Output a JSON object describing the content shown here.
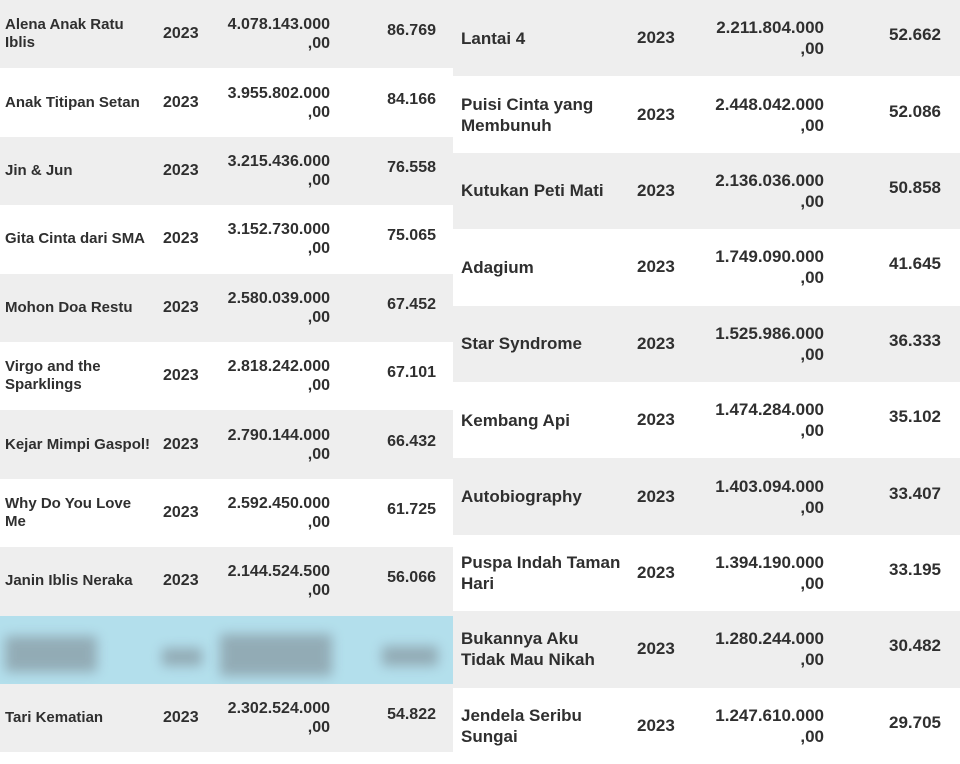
{
  "left_rows": [
    {
      "title": "Alena Anak Ratu Iblis",
      "year": "2023",
      "revenue": "4.078.143.000\n,00",
      "audience": "86.769"
    },
    {
      "title": "Anak Titipan Setan",
      "year": "2023",
      "revenue": "3.955.802.000\n,00",
      "audience": "84.166"
    },
    {
      "title": "Jin & Jun",
      "year": "2023",
      "revenue": "3.215.436.000\n,00",
      "audience": "76.558"
    },
    {
      "title": "Gita Cinta dari SMA",
      "year": "2023",
      "revenue": "3.152.730.000\n,00",
      "audience": "75.065"
    },
    {
      "title": "Mohon Doa Restu",
      "year": "2023",
      "revenue": "2.580.039.000\n,00",
      "audience": "67.452"
    },
    {
      "title": "Virgo and the Sparklings",
      "year": "2023",
      "revenue": "2.818.242.000\n,00",
      "audience": "67.101"
    },
    {
      "title": "Kejar Mimpi Gaspol!",
      "year": "2023",
      "revenue": "2.790.144.000\n,00",
      "audience": "66.432"
    },
    {
      "title": "Why Do You Love Me",
      "year": "2023",
      "revenue": "2.592.450.000\n,00",
      "audience": "61.725"
    },
    {
      "title": "Janin Iblis Neraka",
      "year": "2023",
      "revenue": "2.144.524.500\n,00",
      "audience": "56.066"
    },
    {
      "redacted": true
    },
    {
      "title": "Tari Kematian",
      "year": "2023",
      "revenue": "2.302.524.000\n,00",
      "audience": "54.822"
    }
  ],
  "right_rows": [
    {
      "title": "Lantai 4",
      "year": "2023",
      "revenue": "2.211.804.000\n,00",
      "audience": "52.662"
    },
    {
      "title": "Puisi Cinta yang Membunuh",
      "year": "2023",
      "revenue": "2.448.042.000\n,00",
      "audience": "52.086"
    },
    {
      "title": "Kutukan Peti Mati",
      "year": "2023",
      "revenue": "2.136.036.000\n,00",
      "audience": "50.858"
    },
    {
      "title": "Adagium",
      "year": "2023",
      "revenue": "1.749.090.000\n,00",
      "audience": "41.645"
    },
    {
      "title": "Star Syndrome",
      "year": "2023",
      "revenue": "1.525.986.000\n,00",
      "audience": "36.333"
    },
    {
      "title": "Kembang Api",
      "year": "2023",
      "revenue": "1.474.284.000\n,00",
      "audience": "35.102"
    },
    {
      "title": "Autobiography",
      "year": "2023",
      "revenue": "1.403.094.000\n,00",
      "audience": "33.407"
    },
    {
      "title": "Puspa Indah Taman Hari",
      "year": "2023",
      "revenue": "1.394.190.000\n,00",
      "audience": "33.195"
    },
    {
      "title": "Bukannya Aku Tidak Mau Nikah",
      "year": "2023",
      "revenue": "1.280.244.000\n,00",
      "audience": "30.482"
    },
    {
      "title": "Jendela Seribu Sungai",
      "year": "2023",
      "revenue": "1.247.610.000\n,00",
      "audience": "29.705"
    }
  ],
  "colors": {
    "row_shade": "#eeeeee",
    "row_white": "#ffffff",
    "redacted_highlight": "#b3dfec",
    "text": "#2f2f2f"
  }
}
